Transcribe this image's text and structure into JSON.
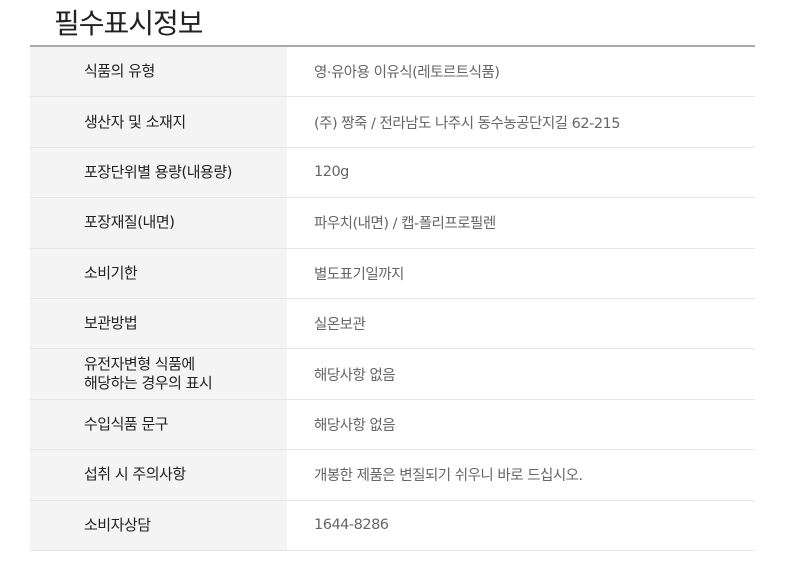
{
  "title": "필수표시정보",
  "rows": [
    {
      "label": "식품의 유형",
      "value": "영·유아용 이유식(레토르트식품)"
    },
    {
      "label": "생산자 및 소재지",
      "value": "(주) 짱죽 / 전라남도 나주시 동수농공단지길 62-215"
    },
    {
      "label": "포장단위별 용량(내용량)",
      "value": "120g"
    },
    {
      "label": "포장재질(내면)",
      "value": "파우치(내면) / 캡-폴리프로필렌"
    },
    {
      "label": "소비기한",
      "value": "별도표기일까지"
    },
    {
      "label": "보관방법",
      "value": "실온보관"
    },
    {
      "label": "유전자변형 식품에\n해당하는 경우의 표시",
      "value": "해당사항 없음"
    },
    {
      "label": "수입식품 문구",
      "value": "해당사항 없음"
    },
    {
      "label": "섭취 시 주의사항",
      "value": "개봉한 제품은 변질되기 쉬우니 바로 드십시오."
    },
    {
      "label": "소비자상담",
      "value": "1644-8286"
    }
  ]
}
